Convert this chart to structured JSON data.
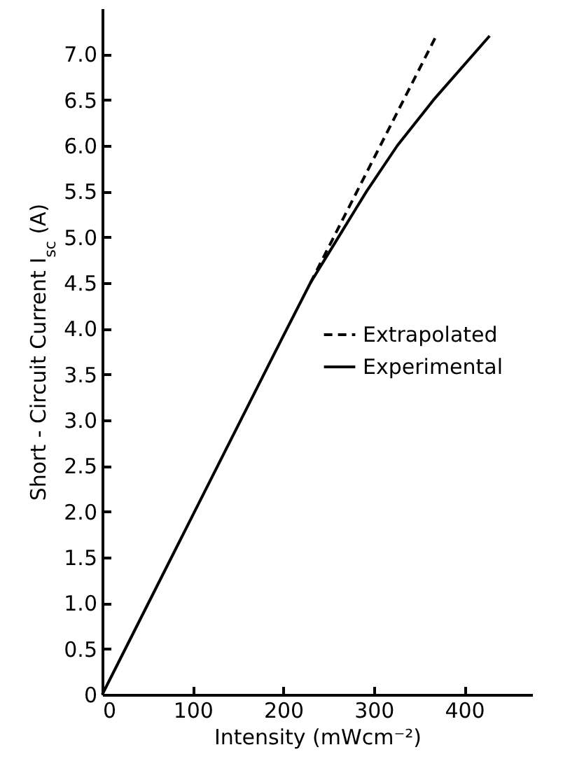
{
  "chart_data": {
    "type": "line",
    "xlabel": "Intensity (mWcm⁻²)",
    "ylabel": "Short - Circuit Current I$_{sc}$ (A)",
    "series": [
      {
        "name": "Extrapolated",
        "color": "#000000",
        "line_style": "dashed",
        "x": [
          230,
          369
        ],
        "values": [
          4.5,
          7.2
        ]
      },
      {
        "name": "Experimental",
        "color": "#000000",
        "line_style": "solid",
        "x": [
          0,
          100,
          200,
          230,
          261,
          292,
          326,
          366,
          428
        ],
        "values": [
          0,
          1.96,
          3.92,
          4.5,
          5.0,
          5.5,
          6.0,
          6.5,
          7.2
        ]
      }
    ],
    "xlim": [
      0,
      475
    ],
    "xticks": [
      0,
      100,
      200,
      300,
      400
    ],
    "ylim": [
      0,
      7.5
    ],
    "yticks": [
      0,
      0.5,
      {
        "value": 1,
        "label": "1.0"
      },
      1.5,
      {
        "value": 2,
        "label": "2.0"
      },
      2.5,
      {
        "value": 3,
        "label": "3.0"
      },
      3.5,
      {
        "value": 4,
        "label": "4.0"
      },
      4.5,
      {
        "value": 5,
        "label": "5.0"
      },
      5.5,
      {
        "value": 6,
        "label": "6.0"
      },
      6.5,
      {
        "value": 7,
        "label": "7.0"
      }
    ],
    "grid": false,
    "legend": "right",
    "marker": "none"
  }
}
